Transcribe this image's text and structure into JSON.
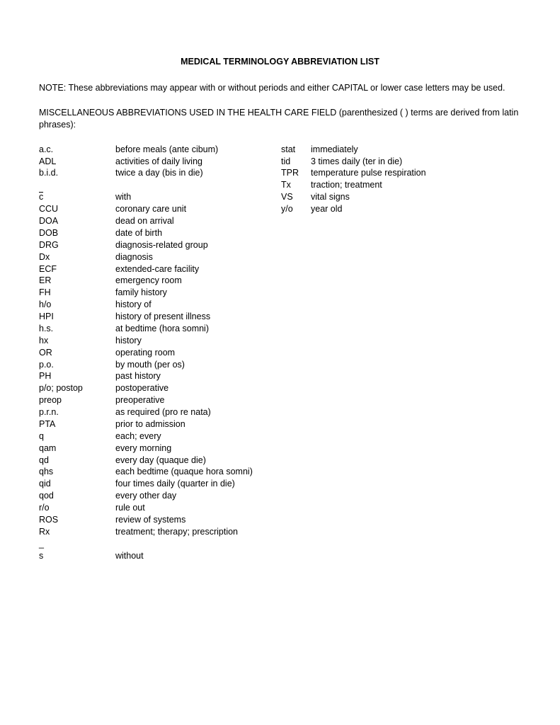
{
  "title": "MEDICAL TERMINOLOGY ABBREVIATION LIST",
  "note": "NOTE:  These abbreviations may appear with or without periods and either CAPITAL or  lower case letters may be used.",
  "subheading": "MISCELLANEOUS ABBREVIATIONS USED IN THE HEALTH CARE FIELD (parenthesized ( ) terms are derived from latin phrases):",
  "leftColumn": [
    {
      "abbr": "a.c.",
      "defn": "before meals (ante cibum)"
    },
    {
      "abbr": "ADL",
      "defn": "activities of daily living"
    },
    {
      "abbr": "b.i.d.",
      "defn": "twice a day (bis in die)"
    },
    {
      "gap": true
    },
    {
      "abbr": "c",
      "defn": "with",
      "overline": true
    },
    {
      "abbr": "CCU",
      "defn": "coronary care unit"
    },
    {
      "abbr": "DOA",
      "defn": "dead on arrival"
    },
    {
      "abbr": "DOB",
      "defn": "date of birth"
    },
    {
      "abbr": "DRG",
      "defn": "diagnosis-related group"
    },
    {
      "abbr": "Dx",
      "defn": "diagnosis"
    },
    {
      "abbr": "ECF",
      "defn": "extended-care facility"
    },
    {
      "abbr": "ER",
      "defn": "emergency room"
    },
    {
      "abbr": "FH",
      "defn": "family history"
    },
    {
      "abbr": "h/o",
      "defn": "history of"
    },
    {
      "abbr": "HPI",
      "defn": "history of present illness"
    },
    {
      "abbr": "h.s.",
      "defn": "at bedtime (hora somni)"
    },
    {
      "abbr": "hx",
      "defn": "history"
    },
    {
      "abbr": "OR",
      "defn": "operating room"
    },
    {
      "abbr": "p.o.",
      "defn": "by mouth (per os)"
    },
    {
      "abbr": "PH",
      "defn": "past history"
    },
    {
      "abbr": "p/o; postop",
      "defn": "postoperative"
    },
    {
      "abbr": "preop",
      "defn": "preoperative"
    },
    {
      "abbr": "p.r.n.",
      "defn": "as required (pro re nata)"
    },
    {
      "abbr": "PTA",
      "defn": "prior to admission"
    },
    {
      "abbr": "q",
      "defn": "each; every"
    },
    {
      "abbr": "qam",
      "defn": "every morning"
    },
    {
      "abbr": "qd",
      "defn": "every day (quaque die)"
    },
    {
      "abbr": "qhs",
      "defn": "each bedtime (quaque hora somni)"
    },
    {
      "abbr": "qid",
      "defn": "four times daily (quarter in die)"
    },
    {
      "abbr": "qod",
      "defn": "every other day"
    },
    {
      "abbr": "r/o",
      "defn": "rule out"
    },
    {
      "abbr": "ROS",
      "defn": "review of systems"
    },
    {
      "abbr": "Rx",
      "defn": "treatment; therapy; prescription"
    },
    {
      "underscore": true
    },
    {
      "abbr": "s",
      "defn": "without"
    }
  ],
  "rightColumn": [
    {
      "abbr": "stat",
      "defn": "immediately"
    },
    {
      "abbr": "tid",
      "defn": "3 times daily (ter in die)"
    },
    {
      "abbr": "TPR",
      "defn": "temperature pulse respiration"
    },
    {
      "abbr": "Tx",
      "defn": "traction; treatment"
    },
    {
      "abbr": "VS",
      "defn": "vital signs"
    },
    {
      "abbr": "y/o",
      "defn": "year old"
    }
  ]
}
